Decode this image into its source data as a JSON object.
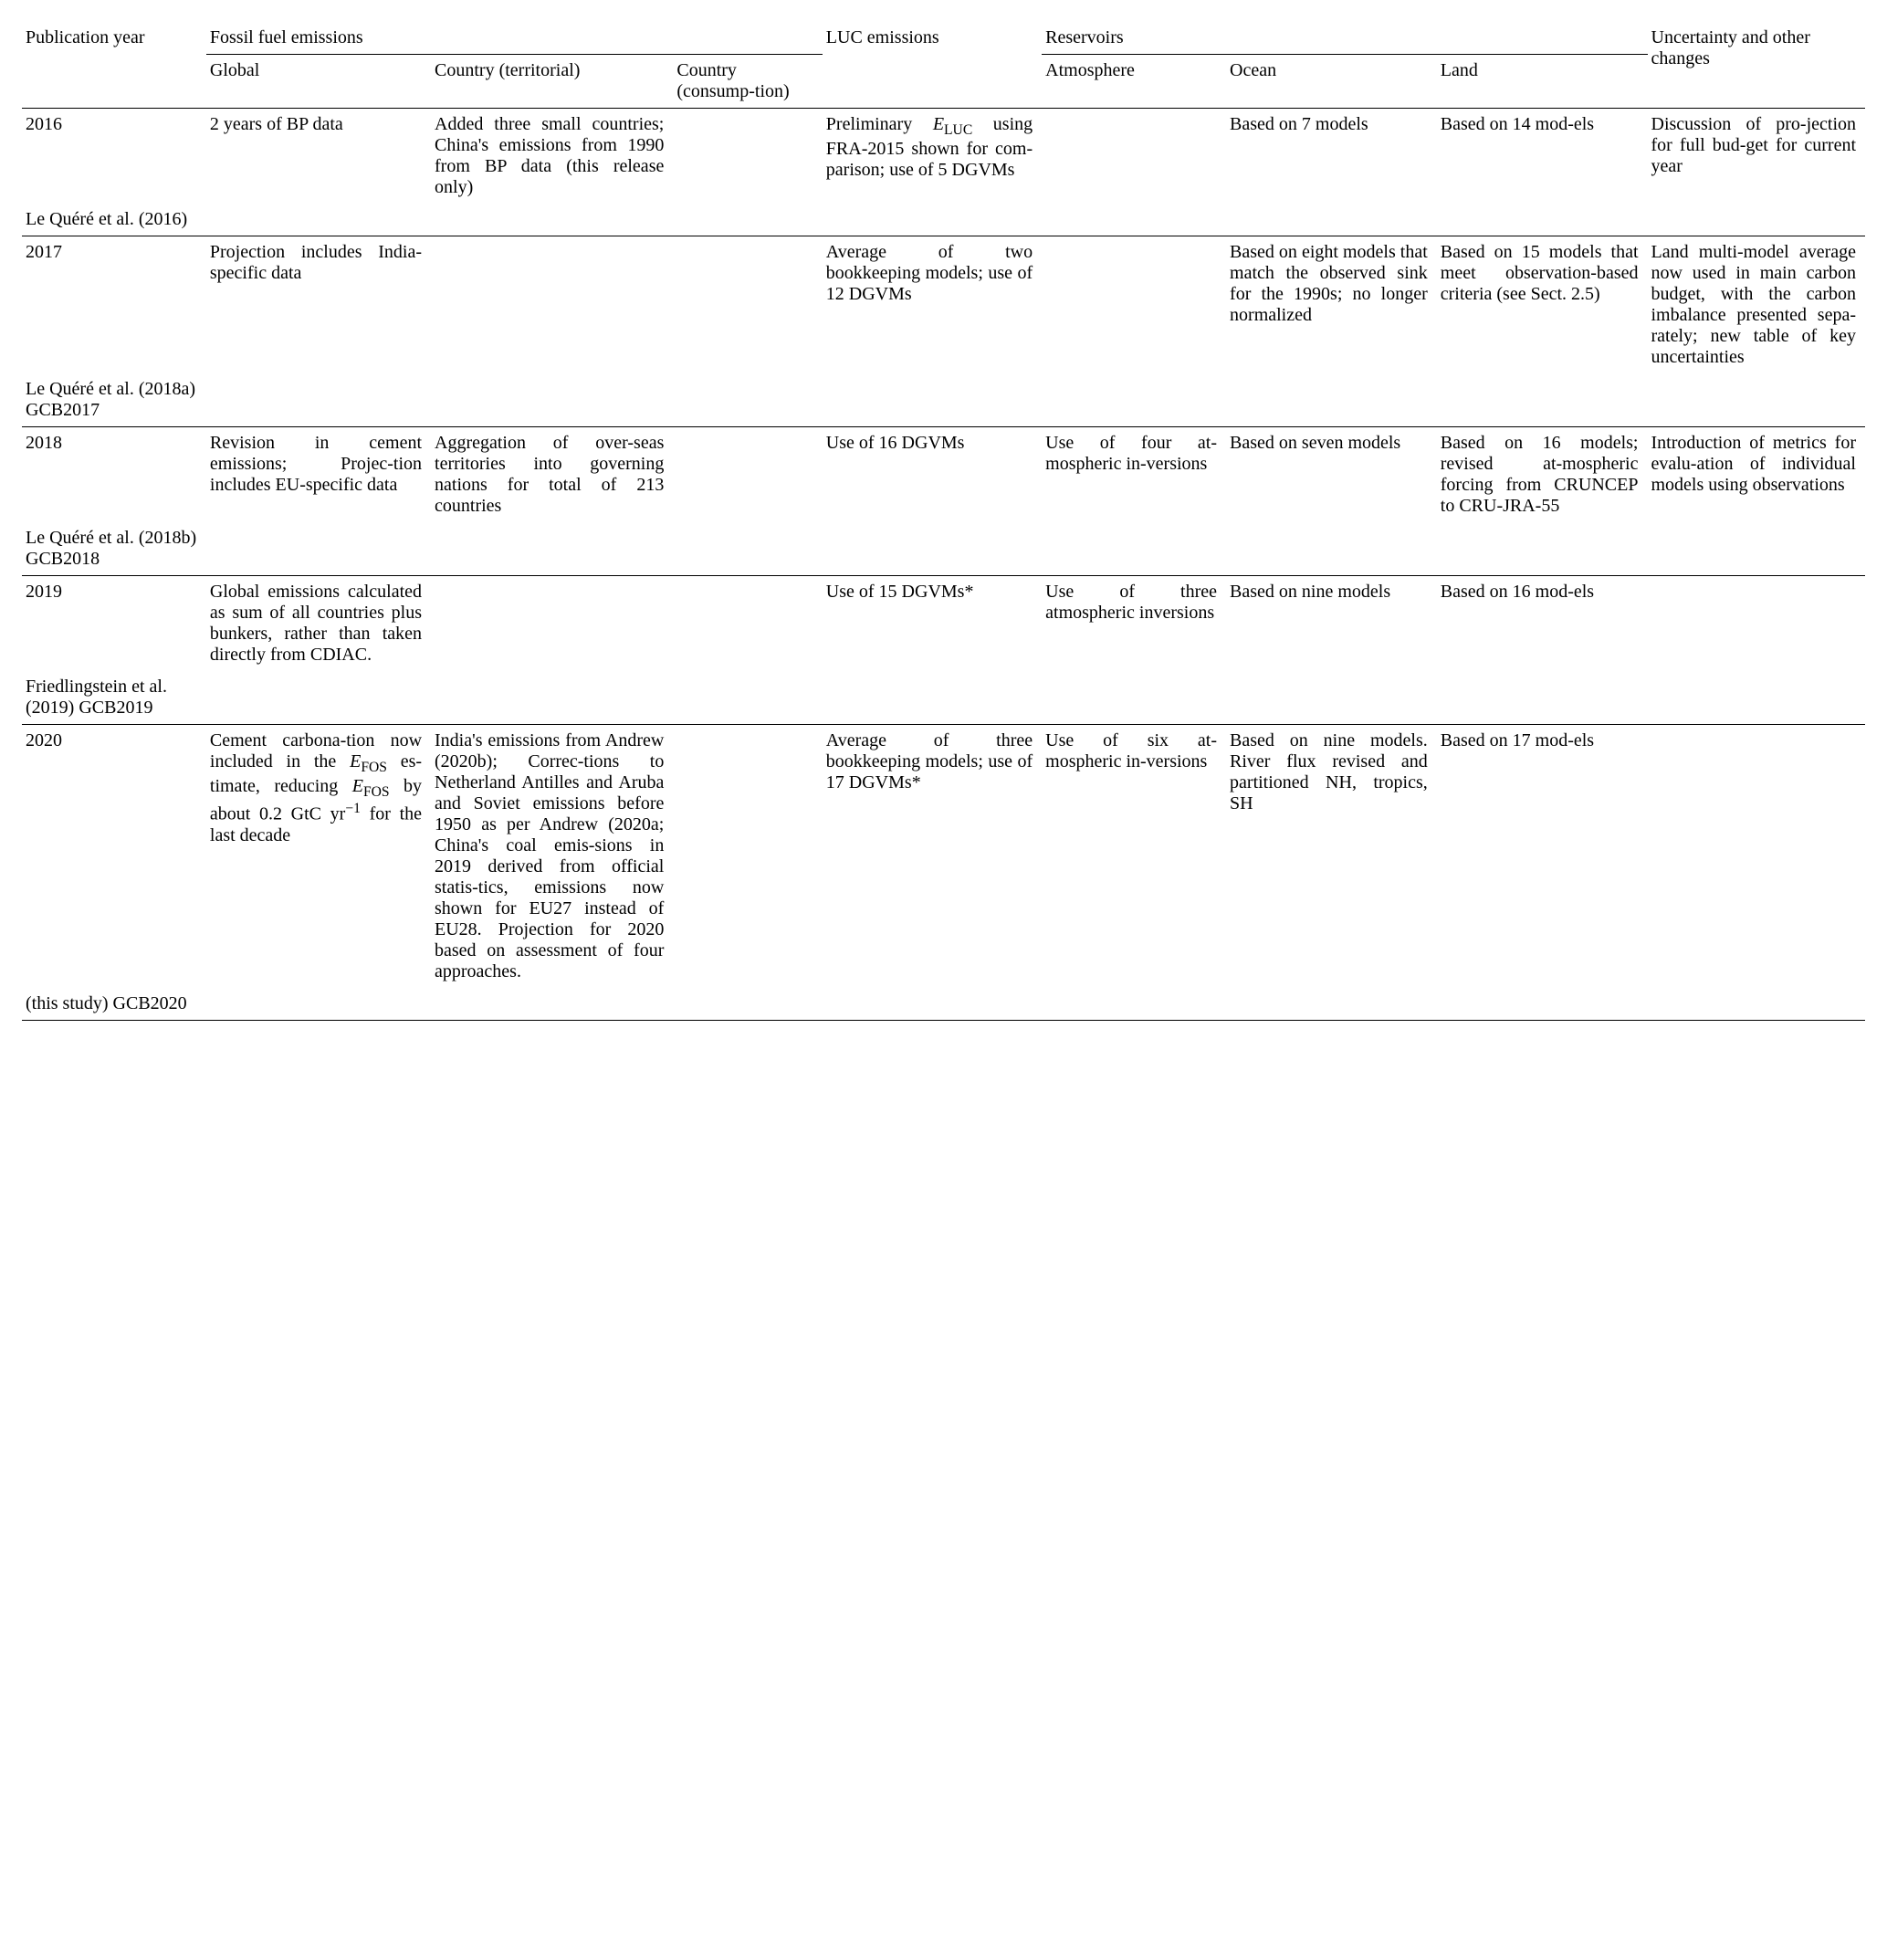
{
  "headers": {
    "pub_year": "Publication year",
    "ffe": "Fossil fuel emissions",
    "ffe_global": "Global",
    "ffe_territorial": "Country (territorial)",
    "ffe_consumption": "Country (consump-tion)",
    "luc": "LUC emissions",
    "reservoirs": "Reservoirs",
    "res_atm": "Atmosphere",
    "res_ocean": "Ocean",
    "res_land": "Land",
    "uncertainty": "Uncertainty and other changes"
  },
  "rows": [
    {
      "year": "2016",
      "ref": "Le Quéré et al. (2016)",
      "global": "2 years of BP data",
      "territorial": "Added three small countries; China's emissions from 1990 from BP data (this release only)",
      "consumption": "",
      "luc_pre": "Preliminary ",
      "luc_post": " using FRA-2015 shown for com-parison; use of 5 DGVMs",
      "atm": "",
      "ocean": "Based on 7 models",
      "land": "Based on 14 mod-els",
      "unc": "Discussion of pro-jection for full bud-get for current year"
    },
    {
      "year": "2017",
      "ref": "Le Quéré et al. (2018a) GCB2017",
      "global": "Projection includes India-specific data",
      "territorial": "",
      "consumption": "",
      "luc": "Average of two bookkeeping models; use of 12 DGVMs",
      "atm": "",
      "ocean": "Based on eight models that match the observed sink for the 1990s; no longer normalized",
      "land": "Based on 15 models that meet observation-based criteria (see Sect. 2.5)",
      "unc": "Land multi-model average now used in main carbon budget, with the carbon imbalance presented sepa-rately; new table of key uncertainties"
    },
    {
      "year": "2018",
      "ref": "Le Quéré et al. (2018b) GCB2018",
      "global": "Revision in cement emissions; Projec-tion includes EU-specific data",
      "territorial": "Aggregation of over-seas territories into governing nations for total of 213 countries",
      "consumption": "",
      "luc": "Use of 16 DGVMs",
      "atm": "Use of four at-mospheric in-versions",
      "ocean": "Based on seven models",
      "land": "Based on 16 models; revised at-mospheric forcing from CRUNCEP to CRU-JRA-55",
      "unc": "Introduction of metrics for evalu-ation of individual models using observations"
    },
    {
      "year": "2019",
      "ref": "Friedlingstein et al. (2019) GCB2019",
      "global": "Global emissions calculated as sum of all countries plus bunkers, rather than taken directly from CDIAC.",
      "territorial": "",
      "consumption": "",
      "luc": "Use of 15 DGVMs*",
      "atm": "Use of three atmospheric inversions",
      "ocean": "Based on nine models",
      "land": "Based on 16 mod-els",
      "unc": ""
    },
    {
      "year": "2020",
      "ref": "(this study) GCB2020",
      "global_pre": "Cement carbona-tion now included in the ",
      "global_mid": " es-timate, reducing ",
      "global_post1": " by about 0.2 GtC yr",
      "global_post2": " for the last decade",
      "territorial": "India's emissions from Andrew (2020b); Correc-tions to Netherland Antilles and Aruba and Soviet emissions before 1950 as per Andrew (2020a; China's coal emis-sions in 2019 derived from official statis-tics, emissions now shown for EU27 instead of EU28. Projection for 2020 based on assessment of four approaches.",
      "consumption": "",
      "luc": "Average of three bookkeeping models; use of 17 DGVMs*",
      "atm": "Use of six at-mospheric in-versions",
      "ocean": "Based on nine models. River flux revised and partitioned NH, tropics, SH",
      "land": "Based on 17 mod-els",
      "unc": ""
    }
  ],
  "symbols": {
    "E": "E",
    "LUC": "LUC",
    "FOS": "FOS",
    "minus1": "−1"
  }
}
